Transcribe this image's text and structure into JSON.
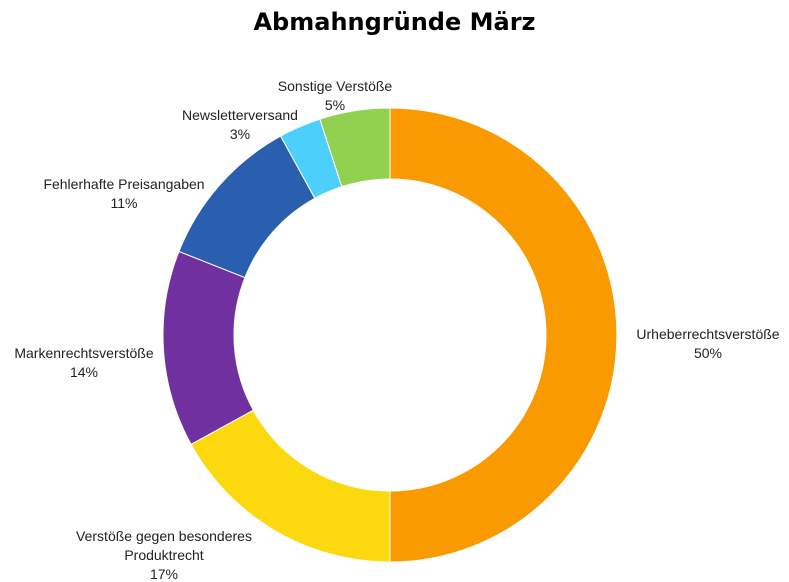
{
  "chart_data": {
    "type": "pie",
    "title": "Abmahngründe März",
    "donut": true,
    "legend": "none",
    "slices": [
      {
        "label": "Urheberrechtsverstöße",
        "label_lines": [
          "Urheberrechtsverstöße"
        ],
        "value": 50,
        "value_label": "50%",
        "color": "#F99A00"
      },
      {
        "label": "Verstöße gegen besonderes Produktrecht",
        "label_lines": [
          "Verstöße gegen besonderes",
          "Produktrecht"
        ],
        "value": 17,
        "value_label": "17%",
        "color": "#FCD90E"
      },
      {
        "label": "Markenrechtsverstöße",
        "label_lines": [
          "Markenrechtsverstöße"
        ],
        "value": 14,
        "value_label": "14%",
        "color": "#7030A0"
      },
      {
        "label": "Fehlerhafte Preisangaben",
        "label_lines": [
          "Fehlerhafte Preisangaben"
        ],
        "value": 11,
        "value_label": "11%",
        "color": "#2A5EAE"
      },
      {
        "label": "Newsletterversand",
        "label_lines": [
          "Newsletterversand"
        ],
        "value": 3,
        "value_label": "3%",
        "color": "#4DCFFB"
      },
      {
        "label": "Sonstige Verstöße",
        "label_lines": [
          "Sonstige Verstöße"
        ],
        "value": 5,
        "value_label": "5%",
        "color": "#92D050"
      }
    ]
  }
}
